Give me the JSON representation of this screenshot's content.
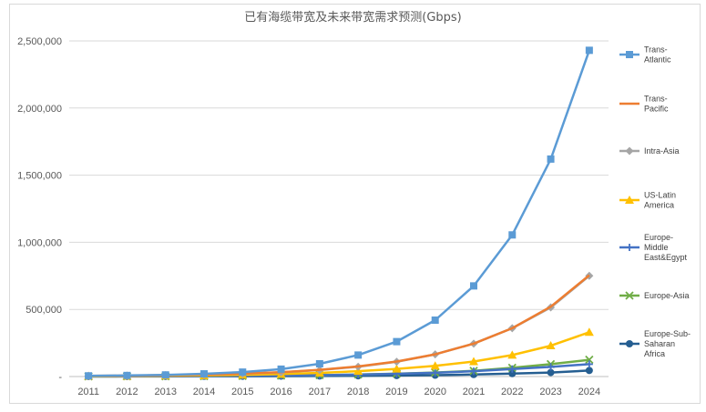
{
  "chart_data": {
    "type": "line",
    "title": "已有海缆带宽及未来带宽需求预测(Gbps)",
    "xlabel": "",
    "ylabel": "",
    "ylim": [
      0,
      2500000
    ],
    "yticks": [
      "-",
      "500,000",
      "1,000,000",
      "1,500,000",
      "2,000,000",
      "2,500,000"
    ],
    "categories": [
      "2011",
      "2012",
      "2013",
      "2014",
      "2015",
      "2016",
      "2017",
      "2018",
      "2019",
      "2020",
      "2021",
      "2022",
      "2023",
      "2024"
    ],
    "grid": "horizontal",
    "legend": "right",
    "series": [
      {
        "name": "Trans-Atlantic",
        "color": "#5b9bd5",
        "marker": "square",
        "values": [
          5000,
          8000,
          12000,
          20000,
          33000,
          55000,
          95000,
          160000,
          260000,
          420000,
          675000,
          1055000,
          1620000,
          2430000
        ]
      },
      {
        "name": "Trans-Pacific",
        "color": "#ed7d31",
        "marker": "none",
        "values": [
          5000,
          7000,
          10000,
          15000,
          22000,
          32000,
          50000,
          75000,
          112000,
          165000,
          245000,
          360000,
          520000,
          755000
        ]
      },
      {
        "name": "Intra-Asia",
        "color": "#a5a5a5",
        "marker": "diamond",
        "values": [
          5000,
          7000,
          10000,
          14000,
          21000,
          31000,
          48000,
          73000,
          110000,
          165000,
          245000,
          360000,
          515000,
          750000
        ]
      },
      {
        "name": "US-Latin America",
        "color": "#ffc000",
        "marker": "triangle",
        "values": [
          3000,
          4000,
          6000,
          8000,
          12000,
          18000,
          27000,
          40000,
          57000,
          80000,
          112000,
          160000,
          230000,
          330000
        ]
      },
      {
        "name": "Europe-Middle East&Egypt",
        "color": "#4472c4",
        "marker": "plus",
        "values": [
          1000,
          1500,
          2000,
          3000,
          4500,
          6500,
          10000,
          14000,
          20000,
          28000,
          40000,
          56000,
          72000,
          92000
        ]
      },
      {
        "name": "Europe-Asia",
        "color": "#70ad47",
        "marker": "x",
        "values": [
          1000,
          1500,
          2000,
          3000,
          4500,
          6500,
          10000,
          15000,
          21000,
          30000,
          42000,
          65000,
          92000,
          125000
        ]
      },
      {
        "name": "Europe-Sub-Saharan Africa",
        "color": "#255e91",
        "marker": "circle",
        "values": [
          500,
          800,
          1000,
          1500,
          2000,
          3000,
          4000,
          5500,
          7500,
          10000,
          15000,
          22000,
          30000,
          45000
        ]
      }
    ]
  },
  "legend_labels": [
    [
      "Trans-",
      "Atlantic"
    ],
    [
      "Trans-",
      "Pacific"
    ],
    [
      "Intra-Asia"
    ],
    [
      "US-Latin",
      "America"
    ],
    [
      "Europe-",
      "Middle",
      "East&Egypt"
    ],
    [
      "Europe-Asia"
    ],
    [
      "Europe-Sub-",
      "Saharan",
      "Africa"
    ]
  ]
}
